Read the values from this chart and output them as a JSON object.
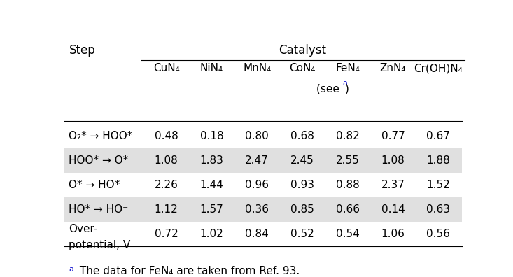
{
  "title_left": "Step",
  "title_right": "Catalyst",
  "col_headers": [
    "CuN₄",
    "NiN₄",
    "MnN₄",
    "CoN₄",
    "FeN₄",
    "ZnN₄",
    "Cr(OH)N₄"
  ],
  "row_labels": [
    "O₂* → HOO*",
    "HOO* → O*",
    "O* → HO*",
    "HO* → HO⁻",
    "Over-\npotential, V"
  ],
  "table_data": [
    [
      0.48,
      0.18,
      0.8,
      0.68,
      0.82,
      0.77,
      0.67
    ],
    [
      1.08,
      1.83,
      2.47,
      2.45,
      2.55,
      1.08,
      1.88
    ],
    [
      2.26,
      1.44,
      0.96,
      0.93,
      0.88,
      2.37,
      1.52
    ],
    [
      1.12,
      1.57,
      0.36,
      0.85,
      0.66,
      0.14,
      0.63
    ],
    [
      0.72,
      1.02,
      0.84,
      0.52,
      0.54,
      1.06,
      0.56
    ]
  ],
  "shaded_rows": [
    1,
    3
  ],
  "shade_color": "#e0e0e0",
  "footnote_color": "#0000cc",
  "background_color": "#ffffff",
  "font_size": 11
}
